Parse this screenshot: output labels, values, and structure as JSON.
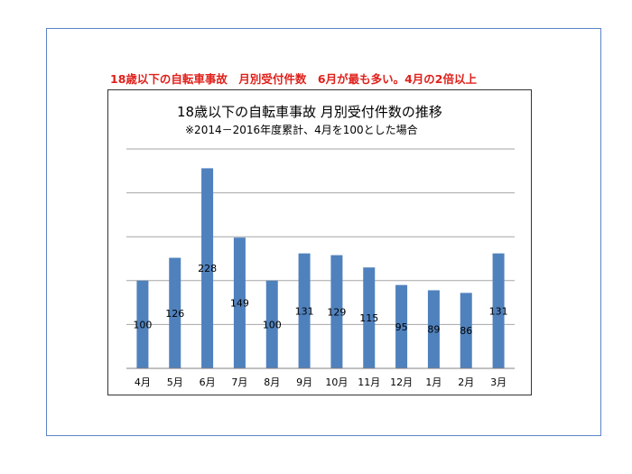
{
  "headline": "18歳以下の自転車事故　月別受付件数　6月が最も多い。4月の2倍以上",
  "chart_data": {
    "type": "bar",
    "title": "18歳以下の自転車事故 月別受付件数の推移",
    "subtitle": "※2014－2016年度累計、4月を100とした場合",
    "categories": [
      "4月",
      "5月",
      "6月",
      "7月",
      "8月",
      "9月",
      "10月",
      "11月",
      "12月",
      "1月",
      "2月",
      "3月"
    ],
    "values": [
      100,
      126,
      228,
      149,
      100,
      131,
      129,
      115,
      95,
      89,
      86,
      131
    ],
    "ylim": [
      0,
      250
    ],
    "ytick_step": 50,
    "grid": true,
    "legend": "none",
    "colors": {
      "bar": "#4f81bd",
      "grid": "#a6a6a6",
      "axis": "#808080"
    }
  }
}
